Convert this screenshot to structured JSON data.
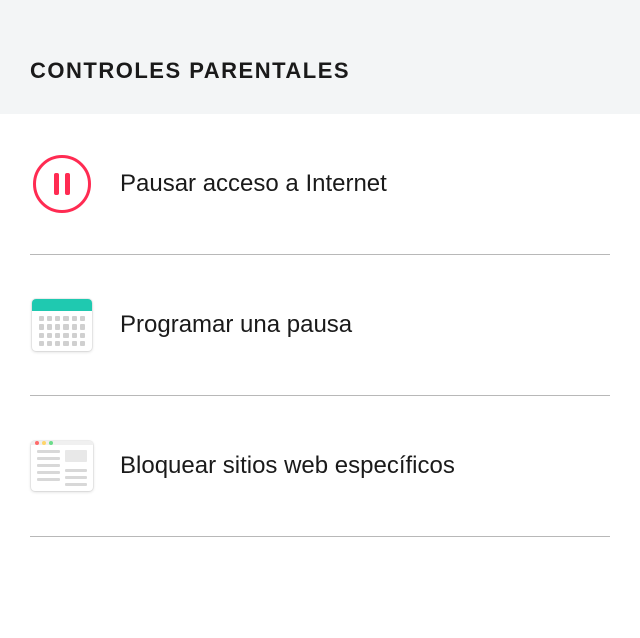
{
  "header": {
    "title": "CONTROLES PARENTALES"
  },
  "items": [
    {
      "id": "pause-internet",
      "label": "Pausar acceso a Internet",
      "icon": "pause-icon",
      "accent_color": "#ff2b52"
    },
    {
      "id": "schedule-pause",
      "label": "Programar una pausa",
      "icon": "calendar-icon",
      "accent_color": "#1fc9b0"
    },
    {
      "id": "block-sites",
      "label": "Bloquear sitios web específicos",
      "icon": "browser-icon"
    }
  ],
  "colors": {
    "header_bg": "#f3f5f6",
    "text": "#1a1a1a",
    "divider": "#b8b8b8",
    "icon_grey": "#d0d0d0"
  }
}
